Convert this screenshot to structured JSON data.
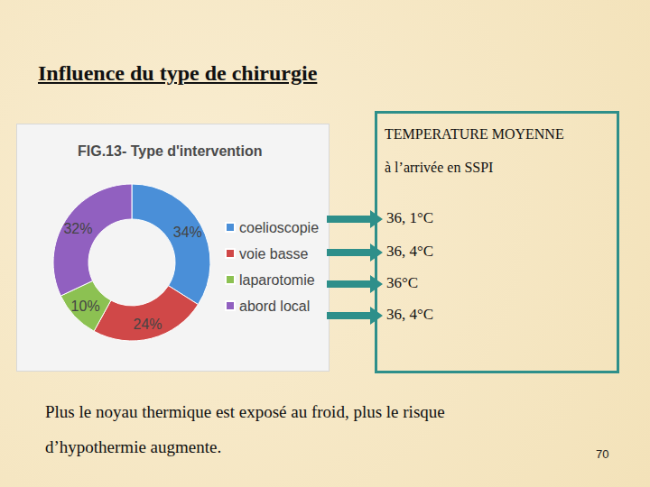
{
  "slide": {
    "title": "Influence du type de chirurgie",
    "box_title": [
      "TEMPERATURE MOYENNE",
      "à l’arrivée en SSPI"
    ],
    "temperatures": [
      "36, 1°C",
      "36, 4°C",
      "36°C",
      "36, 4°C"
    ],
    "footer": [
      "Plus le noyau thermique est exposé au froid, plus le risque",
      "d’hypothermie augmente."
    ],
    "page_number": 70
  },
  "chart_data": {
    "type": "pie",
    "title": "FIG.13- Type d'intervention",
    "categories": [
      "coelioscopie",
      "voie basse",
      "laparotomie",
      "abord local"
    ],
    "values": [
      34,
      24,
      10,
      32
    ],
    "value_labels": [
      "34%",
      "24%",
      "10%",
      "32%"
    ],
    "colors": [
      "#4a8fd8",
      "#d04848",
      "#8cc152",
      "#9160c0"
    ],
    "legend": "right",
    "data_labels": true
  }
}
